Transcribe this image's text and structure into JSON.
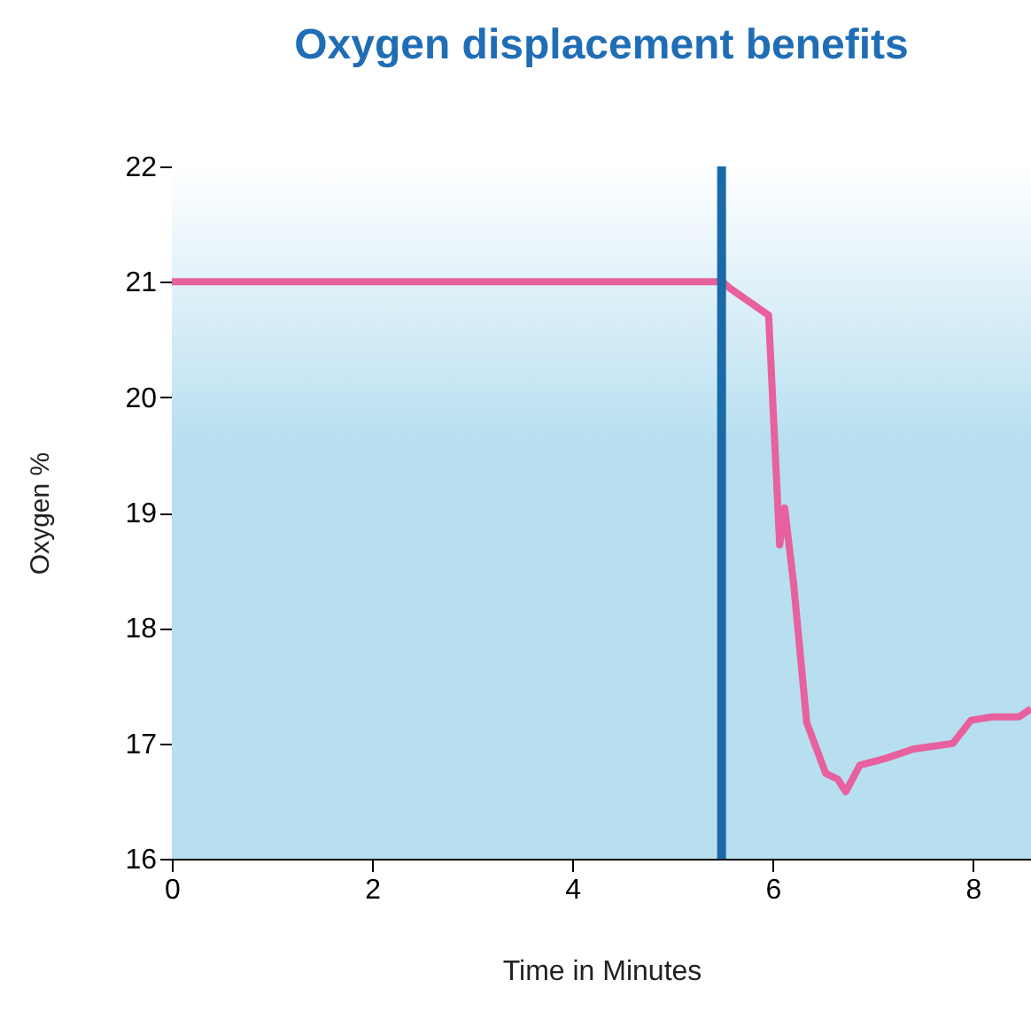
{
  "chart_data": {
    "type": "line",
    "title": "Oxygen displacement benefits",
    "xlabel": "Time in Minutes",
    "ylabel": "Oxygen %",
    "x": [
      0,
      5.5,
      5.58,
      5.96,
      6.07,
      6.12,
      6.21,
      6.34,
      6.53,
      6.65,
      6.73,
      6.87,
      7.13,
      7.4,
      7.8,
      7.98,
      8.19,
      8.46,
      8.58
    ],
    "series": [
      {
        "color": "#e8609e",
        "values": [
          21,
          21,
          20.94,
          20.71,
          18.72,
          19.04,
          18.38,
          17.18,
          16.74,
          16.69,
          16.58,
          16.81,
          16.87,
          16.95,
          17.0,
          17.2,
          17.23,
          17.23,
          17.3
        ]
      }
    ],
    "xlim": [
      0,
      8.58
    ],
    "xticks": [
      0,
      2,
      4,
      6,
      8
    ],
    "ylim": [
      16,
      22
    ],
    "yticks": [
      16,
      17,
      18,
      19,
      20,
      21,
      22
    ],
    "ref_lines": [
      {
        "axis": "x",
        "value": 5.49,
        "color": "#1a6aa8"
      }
    ],
    "bands": [
      {
        "axis": "y",
        "from": 16,
        "to": 22,
        "color": "#b7dff0"
      }
    ],
    "marker": "none",
    "line_style": "solid"
  }
}
